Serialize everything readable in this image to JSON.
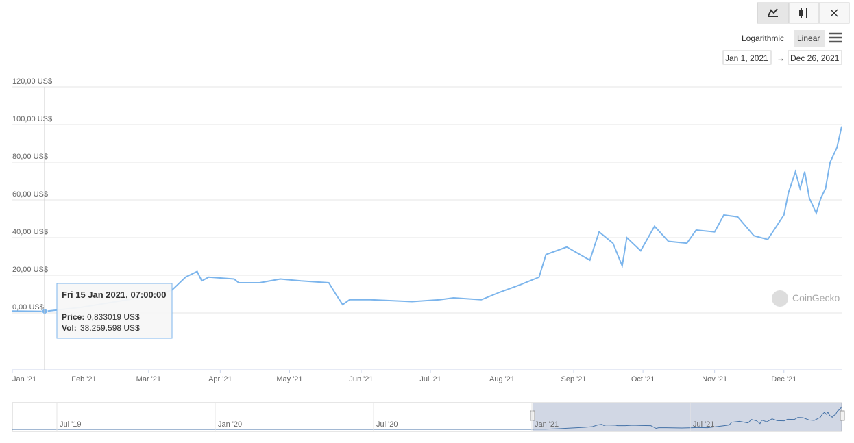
{
  "chart_data": {
    "type": "line",
    "x": [
      0,
      14,
      30,
      45,
      60,
      69,
      75,
      80,
      82,
      85,
      96,
      98,
      107,
      116,
      125,
      137,
      140,
      143,
      146,
      155,
      173,
      185,
      191,
      203,
      211,
      220,
      228,
      231,
      240,
      250,
      254,
      260,
      264,
      266,
      272,
      278,
      284,
      292,
      296,
      304,
      308,
      314,
      321,
      327,
      334,
      336,
      339,
      341,
      343,
      345,
      348,
      350,
      352,
      354,
      357,
      359
    ],
    "series": [
      {
        "name": "Price",
        "color": "#7cb5ec",
        "values": [
          1,
          0.833019,
          3,
          6,
          9,
          12,
          19,
          22,
          17,
          19,
          18,
          16,
          16,
          18,
          17,
          16,
          10,
          4.4,
          7,
          7,
          6,
          7,
          8,
          7,
          11,
          15,
          19,
          31,
          35,
          28,
          43,
          37,
          25,
          40,
          33,
          46,
          38,
          37,
          44,
          43,
          52,
          51,
          41,
          39,
          52,
          64,
          75,
          66,
          75,
          61,
          53,
          61,
          66,
          80,
          88,
          99
        ]
      }
    ],
    "xlim": [
      0,
      359
    ],
    "xticks": [
      {
        "value": 0,
        "label": "Jan '21"
      },
      {
        "value": 31,
        "label": "Feb '21"
      },
      {
        "value": 59,
        "label": "Mar '21"
      },
      {
        "value": 90,
        "label": "Apr '21"
      },
      {
        "value": 120,
        "label": "May '21"
      },
      {
        "value": 151,
        "label": "Jun '21"
      },
      {
        "value": 181,
        "label": "Jul '21"
      },
      {
        "value": 212,
        "label": "Aug '21"
      },
      {
        "value": 243,
        "label": "Sep '21"
      },
      {
        "value": 273,
        "label": "Oct '21"
      },
      {
        "value": 304,
        "label": "Nov '21"
      },
      {
        "value": 334,
        "label": "Dec '21"
      }
    ],
    "ylim": [
      0,
      120
    ],
    "yticks": [
      {
        "value": 0,
        "label": "0,00 US$"
      },
      {
        "value": 20,
        "label": "20,00 US$"
      },
      {
        "value": 40,
        "label": "40,00 US$"
      },
      {
        "value": 60,
        "label": "60,00 US$"
      },
      {
        "value": 80,
        "label": "80,00 US$"
      },
      {
        "value": 100,
        "label": "100,00 US$"
      },
      {
        "value": 120,
        "label": "120,00 US$"
      }
    ],
    "grid": true,
    "log_scale": false,
    "scale_buttons": [
      "Logarithmic",
      "Linear"
    ],
    "date_from": "Jan 1, 2021",
    "date_to": "Dec 26, 2021",
    "range_arrow": "→",
    "watermark": "CoinGecko",
    "tooltip": {
      "title": "Fri 15 Jan 2021, 07:00:00",
      "price_label": "Price:",
      "price": "0,833019 US$",
      "vol_label": "Vol:",
      "vol": "38.259.598 US$"
    },
    "navigator_labels": [
      "Jul '19",
      "Jan '20",
      "Jul '20",
      "Jan '21",
      "Jul '21"
    ]
  }
}
